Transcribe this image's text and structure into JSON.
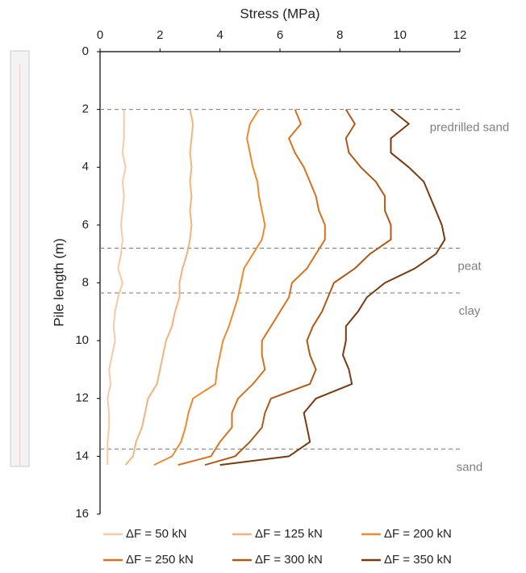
{
  "chart_data": {
    "type": "line",
    "x_label": "Stress (MPa)",
    "y_label": "Pile length (m)",
    "xlim": [
      0,
      12
    ],
    "xticks": [
      0,
      2,
      4,
      6,
      8,
      10,
      12
    ],
    "ylim": [
      0,
      16
    ],
    "yticks": [
      0,
      2,
      4,
      6,
      8,
      10,
      12,
      14,
      16
    ],
    "y": [
      2,
      2.5,
      3,
      3.5,
      4,
      4.5,
      5,
      5.5,
      6,
      6.5,
      7,
      7.5,
      8,
      8.5,
      9,
      9.5,
      10,
      10.5,
      11,
      11.5,
      12,
      12.5,
      13,
      13.5,
      14,
      14.3
    ],
    "series": [
      {
        "name": "ΔF = 50 kN",
        "color": "#f9c9a3",
        "values": [
          0.8,
          0.8,
          0.8,
          0.75,
          0.85,
          0.75,
          0.8,
          0.75,
          0.7,
          0.75,
          0.7,
          0.6,
          0.75,
          0.6,
          0.5,
          0.45,
          0.5,
          0.4,
          0.3,
          0.35,
          0.25,
          0.3,
          0.3,
          0.25,
          0.25,
          0.25
        ]
      },
      {
        "name": "ΔF = 125 kN",
        "color": "#f4b27d",
        "values": [
          3.0,
          3.1,
          3.05,
          3.0,
          3.05,
          3.0,
          3.05,
          3.0,
          3.05,
          3.0,
          2.9,
          2.75,
          2.65,
          2.65,
          2.5,
          2.4,
          2.2,
          2.1,
          2.0,
          1.9,
          1.6,
          1.5,
          1.4,
          1.2,
          1.1,
          0.85
        ]
      },
      {
        "name": "ΔF = 200 kN",
        "color": "#ee8a2e",
        "values": [
          5.3,
          5.0,
          4.9,
          5.0,
          5.1,
          5.25,
          5.3,
          5.4,
          5.5,
          5.4,
          5.1,
          4.8,
          4.7,
          4.6,
          4.45,
          4.3,
          4.1,
          4.0,
          3.9,
          3.85,
          3.1,
          2.95,
          2.85,
          2.7,
          2.4,
          1.8
        ]
      },
      {
        "name": "ΔF = 250 kN",
        "color": "#d8721f",
        "values": [
          6.5,
          6.7,
          6.3,
          6.5,
          6.8,
          7.0,
          7.2,
          7.3,
          7.5,
          7.5,
          7.2,
          6.9,
          6.4,
          6.3,
          6.0,
          5.7,
          5.4,
          5.4,
          5.5,
          5.1,
          4.6,
          4.4,
          4.4,
          4.0,
          3.7,
          2.6
        ]
      },
      {
        "name": "ΔF = 300 kN",
        "color": "#b05815",
        "values": [
          8.2,
          8.5,
          8.2,
          8.3,
          8.7,
          9.2,
          9.5,
          9.5,
          9.7,
          9.7,
          9.0,
          8.5,
          7.8,
          7.6,
          7.4,
          7.1,
          6.9,
          7.0,
          7.2,
          7.0,
          5.7,
          5.5,
          5.4,
          5.0,
          4.5,
          3.5
        ]
      },
      {
        "name": "ΔF = 350 kN",
        "color": "#7a3a10",
        "values": [
          9.7,
          10.3,
          9.7,
          9.7,
          10.3,
          10.8,
          11.0,
          11.2,
          11.4,
          11.5,
          11.2,
          10.5,
          9.5,
          8.9,
          8.6,
          8.2,
          8.2,
          8.1,
          8.3,
          8.4,
          7.2,
          6.8,
          6.9,
          7.0,
          6.3,
          4.0
        ]
      }
    ],
    "layers": [
      {
        "name": "predrilled sand",
        "top": 2
      },
      {
        "name": "peat",
        "top": 6.8
      },
      {
        "name": "clay",
        "top": 8.35
      },
      {
        "name": "sand",
        "top": 13.75
      }
    ]
  }
}
